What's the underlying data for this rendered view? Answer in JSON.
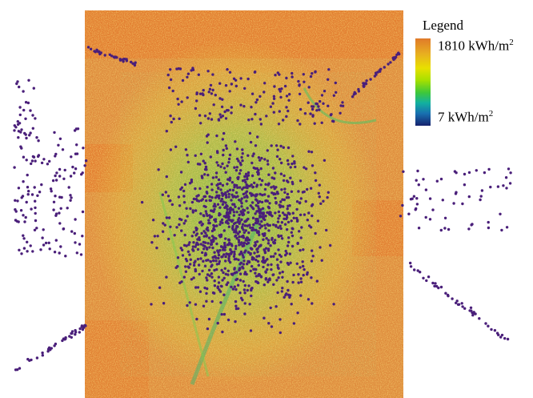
{
  "legend": {
    "title": "Legend",
    "max_value": "1810 kWh/m",
    "min_value": "7 kWh/m",
    "unit_exponent": "2",
    "color_ramp": [
      "#e07a2a",
      "#e8b020",
      "#e8e000",
      "#a6e000",
      "#3ec83a",
      "#12b0a0",
      "#1870b0",
      "#16226e"
    ]
  },
  "colors": {
    "raster_base": "#de8a3c",
    "raster_high": "#e2792d",
    "yellow_band": "#e4c83a",
    "green_band": "#8fd046",
    "teal_band": "#3aa88a",
    "points": "#4a1f7a"
  },
  "map": {
    "type": "solar-irradiation-raster",
    "point_layer": "building-points"
  }
}
